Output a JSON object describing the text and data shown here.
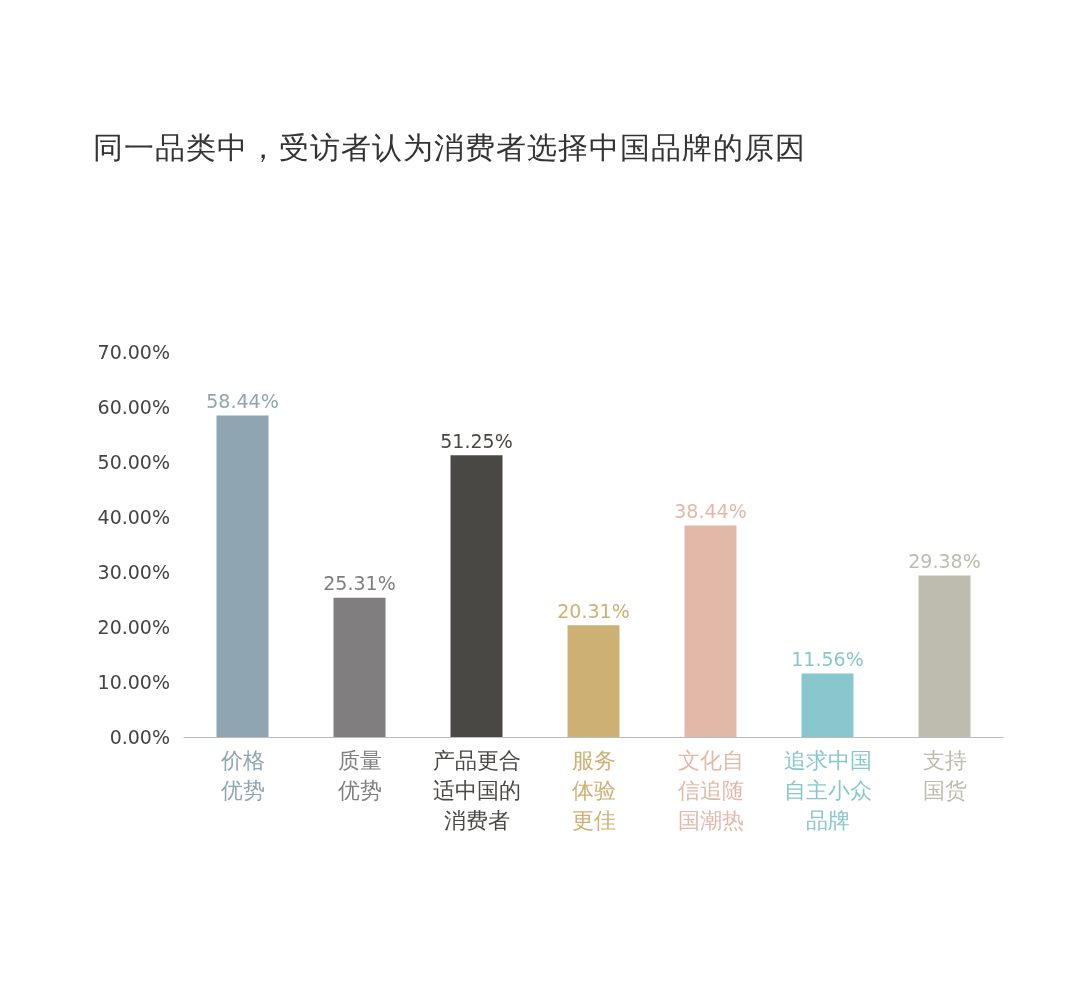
{
  "chart_data": {
    "type": "bar",
    "title": "同一品类中，受访者认为消费者选择中国品牌的原因",
    "categories": [
      "价格优势",
      "质量优势",
      "产品更合适中国的消费者",
      "服务体验更佳",
      "文化自信追随国潮热",
      "追求中国自主小众品牌",
      "支持国货"
    ],
    "values": [
      58.44,
      25.31,
      51.25,
      20.31,
      38.44,
      11.56,
      29.38
    ],
    "value_labels": [
      "58.44%",
      "25.31%",
      "51.25%",
      "20.31%",
      "38.44%",
      "11.56%",
      "29.38%"
    ],
    "colors": [
      "#8fa5b2",
      "#807e7e",
      "#4a4845",
      "#cdb174",
      "#e2b9a9",
      "#88c7ce",
      "#bdbcae"
    ],
    "ylim": [
      0,
      70
    ],
    "yticks": [
      {
        "value": 0,
        "label": "0.00%"
      },
      {
        "value": 10,
        "label": "10.00%"
      },
      {
        "value": 20,
        "label": "20.00%"
      },
      {
        "value": 30,
        "label": "30.00%"
      },
      {
        "value": 40,
        "label": "40.00%"
      },
      {
        "value": 50,
        "label": "50.00%"
      },
      {
        "value": 60,
        "label": "60.00%"
      },
      {
        "value": 70,
        "label": "70.00%"
      }
    ],
    "grid": false
  }
}
